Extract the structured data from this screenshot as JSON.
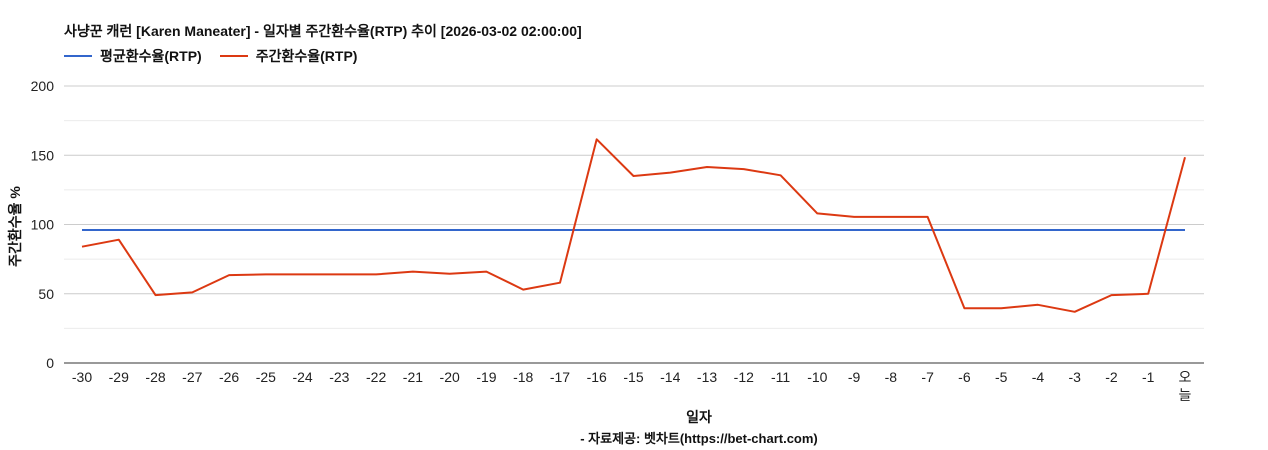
{
  "title": "사냥꾼 캐런 [Karen Maneater] - 일자별 주간환수율(RTP) 추이 [2026-03-02 02:00:00]",
  "legend": [
    {
      "label": "평균환수율(RTP)",
      "color": "#3366cc"
    },
    {
      "label": "주간환수율(RTP)",
      "color": "#dc3912"
    }
  ],
  "footer": "- 자료제공: 벳차트(https://bet-chart.com)",
  "colors": {
    "average": "#3366cc",
    "weekly": "#dc3912",
    "grid_major": "#cccccc",
    "grid_minor": "#ebebeb",
    "axis": "#333333"
  },
  "chart_data": {
    "type": "line",
    "title": "사냥꾼 캐런 [Karen Maneater] - 일자별 주간환수율(RTP) 추이 [2026-03-02 02:00:00]",
    "xlabel": "일자",
    "ylabel": "주간환수율 %",
    "ylim": [
      0,
      200
    ],
    "yticks": [
      0,
      50,
      100,
      150,
      200
    ],
    "grid": true,
    "legend_position": "top",
    "categories": [
      "-30",
      "-29",
      "-28",
      "-27",
      "-26",
      "-25",
      "-24",
      "-23",
      "-22",
      "-21",
      "-20",
      "-19",
      "-18",
      "-17",
      "-16",
      "-15",
      "-14",
      "-13",
      "-12",
      "-11",
      "-10",
      "-9",
      "-8",
      "-7",
      "-6",
      "-5",
      "-4",
      "-3",
      "-2",
      "-1",
      "오늘"
    ],
    "series": [
      {
        "name": "평균환수율(RTP)",
        "color": "#3366cc",
        "values": [
          96,
          96,
          96,
          96,
          96,
          96,
          96,
          96,
          96,
          96,
          96,
          96,
          96,
          96,
          96,
          96,
          96,
          96,
          96,
          96,
          96,
          96,
          96,
          96,
          96,
          96,
          96,
          96,
          96,
          96,
          96
        ]
      },
      {
        "name": "주간환수율(RTP)",
        "color": "#dc3912",
        "values": [
          84,
          89,
          49,
          51,
          63.5,
          64,
          64,
          64,
          64,
          66,
          64.5,
          66,
          53,
          58,
          161.5,
          135,
          137.5,
          141.5,
          140,
          135.5,
          108,
          105.5,
          105.5,
          105.5,
          39.5,
          39.5,
          42,
          37,
          49,
          50,
          148.5
        ]
      }
    ]
  }
}
